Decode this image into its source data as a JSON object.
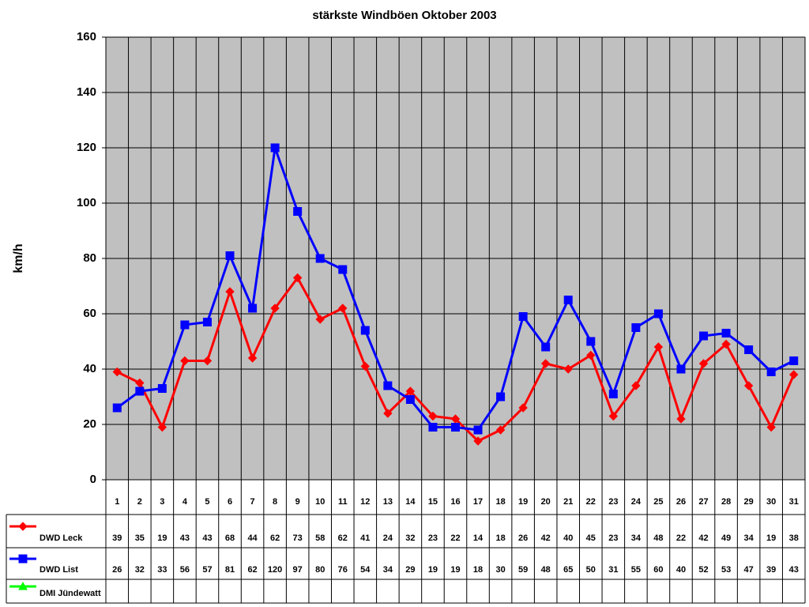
{
  "chart_data": {
    "type": "line",
    "title": "stärkste Windböen Oktober 2003",
    "y_label": "km/h",
    "categories": [
      "1",
      "2",
      "3",
      "4",
      "5",
      "6",
      "7",
      "8",
      "9",
      "10",
      "11",
      "12",
      "13",
      "14",
      "15",
      "16",
      "17",
      "18",
      "19",
      "20",
      "21",
      "22",
      "23",
      "24",
      "25",
      "26",
      "27",
      "28",
      "29",
      "30",
      "31"
    ],
    "series": [
      {
        "name": "DWD Leck",
        "color": "#ff0000",
        "marker": "diamond",
        "values": [
          39,
          35,
          19,
          43,
          43,
          68,
          44,
          62,
          73,
          58,
          62,
          41,
          24,
          32,
          23,
          22,
          14,
          18,
          26,
          42,
          40,
          45,
          23,
          34,
          48,
          22,
          42,
          49,
          34,
          19,
          38
        ]
      },
      {
        "name": "DWD List",
        "color": "#0000ff",
        "marker": "square",
        "values": [
          26,
          32,
          33,
          56,
          57,
          81,
          62,
          120,
          97,
          80,
          76,
          54,
          34,
          29,
          19,
          19,
          18,
          30,
          59,
          48,
          65,
          50,
          31,
          55,
          60,
          40,
          52,
          53,
          47,
          39,
          43
        ]
      },
      {
        "name": "DMI Jündewatt",
        "color": "#00ff00",
        "marker": "triangle",
        "values": [
          null,
          null,
          null,
          null,
          null,
          null,
          null,
          null,
          null,
          null,
          null,
          null,
          null,
          null,
          null,
          null,
          null,
          null,
          null,
          null,
          null,
          null,
          null,
          null,
          null,
          null,
          null,
          null,
          null,
          null,
          null
        ]
      }
    ],
    "ylim": [
      0,
      160
    ],
    "yticks": [
      0,
      20,
      40,
      60,
      80,
      100,
      120,
      140,
      160
    ],
    "grid": true,
    "plot_background": "#c0c0c0"
  }
}
